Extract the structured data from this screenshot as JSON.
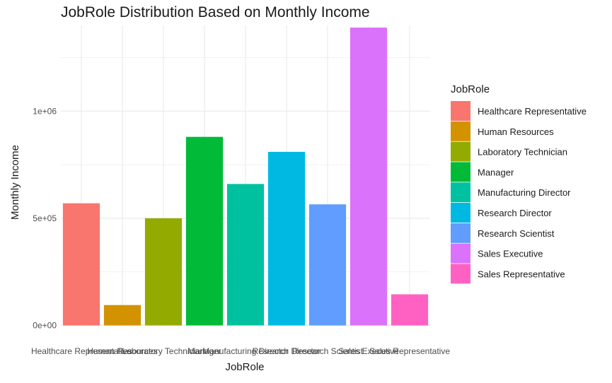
{
  "chart_data": {
    "type": "bar",
    "title": "JobRole Distribution Based on Monthly Income",
    "xlabel": "JobRole",
    "ylabel": "Monthly Income",
    "ylim": [
      -5000,
      1400000
    ],
    "yticks": [
      0,
      500000,
      1000000
    ],
    "ytick_labels": [
      "0e+00",
      "5e+05",
      "1e+06"
    ],
    "grid": true,
    "legend_title": "JobRole",
    "legend_position": "right",
    "categories": [
      "Healthcare Representative",
      "Human Resources",
      "Laboratory Technician",
      "Manager",
      "Manufacturing Director",
      "Research Director",
      "Research Scientist",
      "Sales Executive",
      "Sales Representative"
    ],
    "values": [
      570000,
      95000,
      500000,
      880000,
      660000,
      810000,
      565000,
      1390000,
      145000
    ],
    "colors": [
      "#F8766D",
      "#D39200",
      "#93AA00",
      "#00BA38",
      "#00C19F",
      "#00B9E3",
      "#619CFF",
      "#DB72FB",
      "#FF61C3"
    ]
  }
}
